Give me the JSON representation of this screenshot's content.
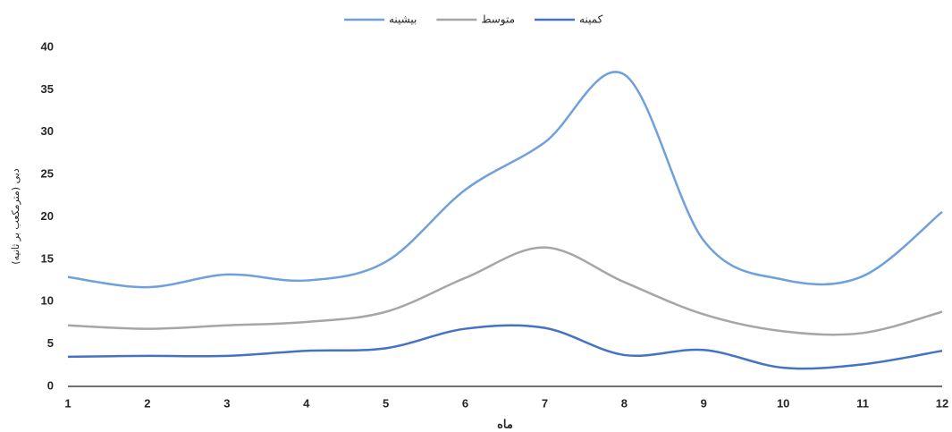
{
  "chart_data": {
    "type": "line",
    "y_label": "دبی (مترمکعب بر ثانیه)",
    "x_label": "ماه",
    "categories": [
      "1",
      "2",
      "3",
      "4",
      "5",
      "6",
      "7",
      "8",
      "9",
      "10",
      "11",
      "12"
    ],
    "series": [
      {
        "name": "بیشینه",
        "color": "#6fa0dc",
        "values": [
          12.9,
          11.7,
          13.2,
          12.5,
          14.7,
          23.2,
          28.8,
          36.8,
          17.2,
          12.6,
          13.0,
          20.6
        ]
      },
      {
        "name": "متوسط",
        "color": "#a6a6a6",
        "values": [
          7.2,
          6.8,
          7.2,
          7.6,
          8.8,
          12.8,
          16.4,
          12.3,
          8.5,
          6.5,
          6.3,
          8.8
        ]
      },
      {
        "name": "کمینه",
        "color": "#4472c4",
        "values": [
          3.5,
          3.6,
          3.6,
          4.2,
          4.5,
          6.8,
          6.9,
          3.7,
          4.3,
          2.2,
          2.6,
          4.2
        ]
      }
    ],
    "ylim": [
      0,
      40
    ],
    "yticks": [
      0,
      5,
      10,
      15,
      20,
      25,
      30,
      35,
      40
    ],
    "smooth": true,
    "grid": false
  }
}
